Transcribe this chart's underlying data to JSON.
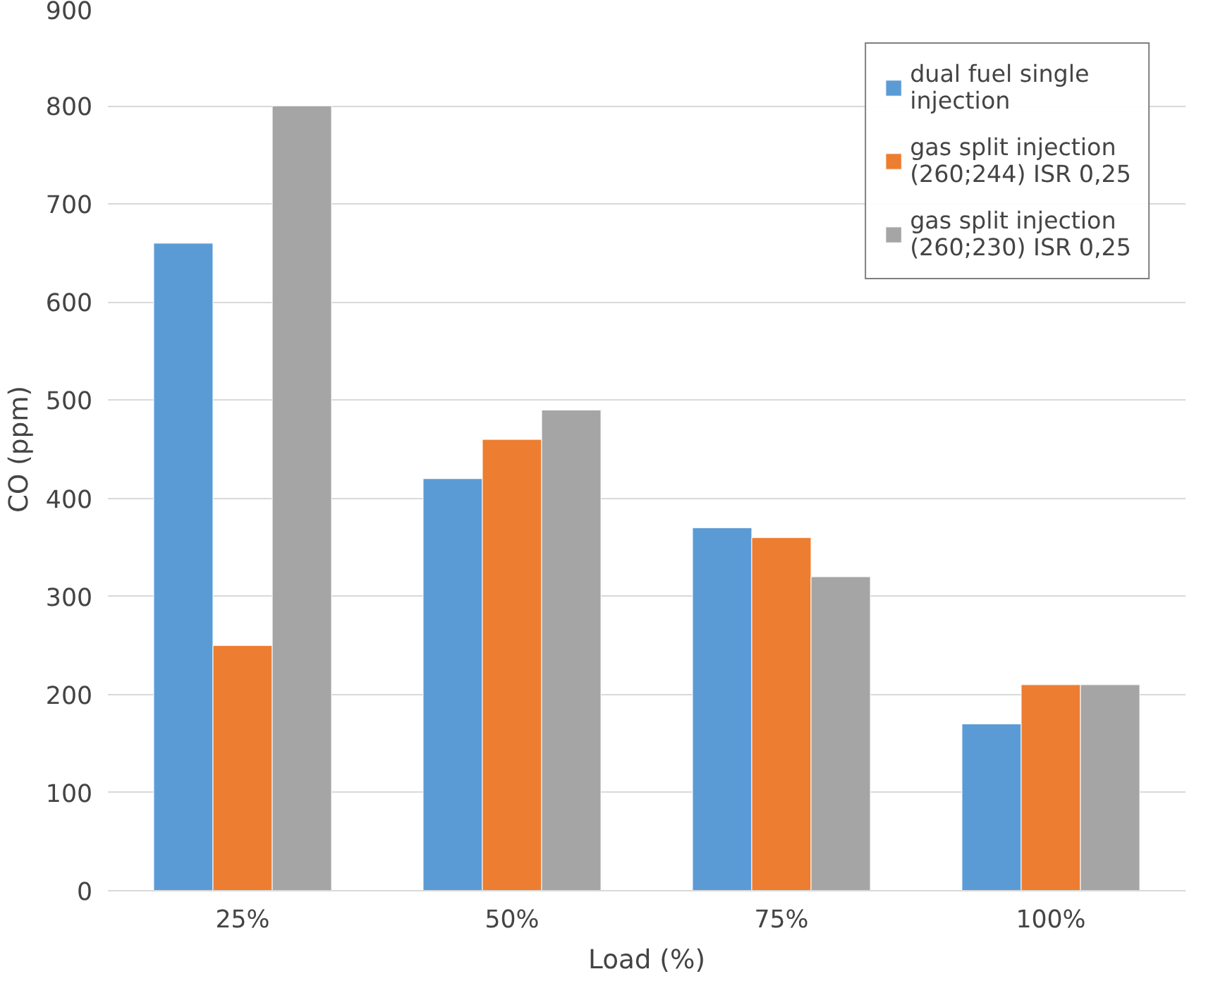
{
  "chart_data": {
    "type": "bar",
    "xlabel": "Load (%)",
    "ylabel": "CO (ppm)",
    "categories": [
      "25%",
      "50%",
      "75%",
      "100%"
    ],
    "series": [
      {
        "name": "dual fuel single injection",
        "color": "#5b9bd5",
        "values": [
          660,
          420,
          370,
          170
        ]
      },
      {
        "name": "gas split injection (260;244) ISR 0,25",
        "color": "#ed7d31",
        "values": [
          250,
          460,
          360,
          210
        ]
      },
      {
        "name": "gas split injection (260;230) ISR 0,25",
        "color": "#a5a5a5",
        "values": [
          800,
          490,
          320,
          210
        ]
      }
    ],
    "ylim": [
      0,
      900
    ],
    "yticks": [
      0,
      100,
      200,
      300,
      400,
      500,
      600,
      700,
      800,
      900
    ],
    "grid": "y",
    "legend": "top right"
  }
}
